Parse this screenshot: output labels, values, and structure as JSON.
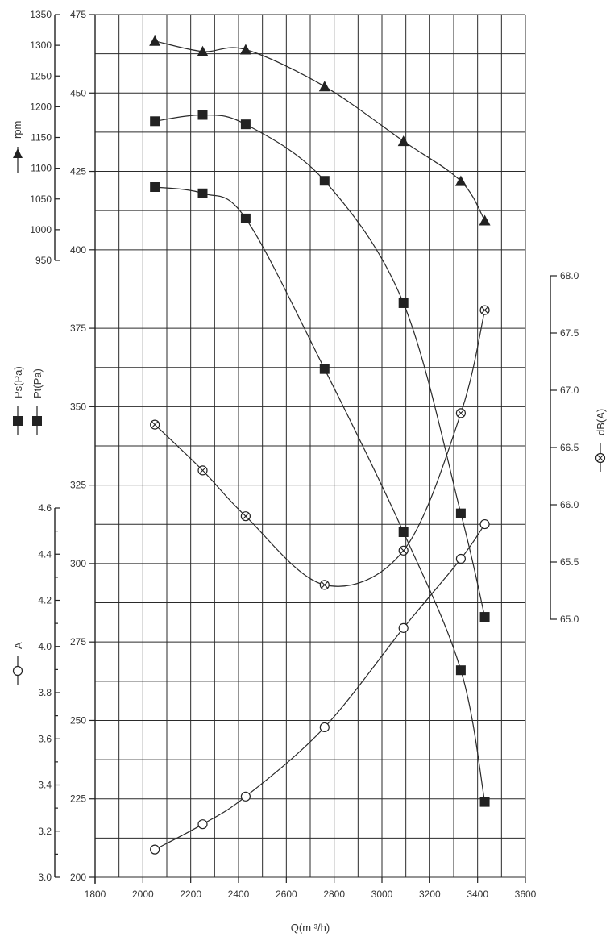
{
  "chart_data": {
    "type": "line",
    "x": [
      2050,
      2250,
      2430,
      2760,
      3090,
      3330,
      3430
    ],
    "xlabel": "Q(m ³/h)",
    "xlim": [
      1800,
      3600
    ],
    "xticks": [
      "1800",
      "2000",
      "2200",
      "2400",
      "2600",
      "2800",
      "3000",
      "3200",
      "3400",
      "3600"
    ],
    "grid": true,
    "axes": {
      "rpm": {
        "label": "rpm",
        "range": [
          950,
          1350
        ],
        "ticks": [
          "950",
          "1000",
          "1050",
          "1100",
          "1150",
          "1200",
          "1250",
          "1300",
          "1350"
        ]
      },
      "pressure": {
        "label_ps": "Ps(Pa)",
        "label_pt": "Pt(Pa)",
        "range": [
          200,
          475
        ],
        "ticks": [
          "200",
          "225",
          "250",
          "275",
          "300",
          "325",
          "350",
          "375",
          "400",
          "425",
          "450",
          "475"
        ]
      },
      "current": {
        "label": "A",
        "range": [
          3.0,
          4.6
        ],
        "ticks": [
          "3.0",
          "3.2",
          "3.4",
          "3.6",
          "3.8",
          "4.0",
          "4.2",
          "4.4",
          "4.6"
        ]
      },
      "noise": {
        "label": "dB(A)",
        "range": [
          65.0,
          68.0
        ],
        "ticks": [
          "65.0",
          "65.5",
          "66.0",
          "66.5",
          "67.0",
          "67.5",
          "68.0"
        ]
      }
    },
    "series": [
      {
        "name": "rpm",
        "axis": "rpm",
        "marker": "triangle",
        "values": [
          1307,
          1290,
          1293,
          1233,
          1144,
          1079,
          1015
        ]
      },
      {
        "name": "Pt(Pa)",
        "axis": "pressure",
        "marker": "square",
        "values": [
          441,
          443,
          440,
          422,
          383,
          316,
          283
        ]
      },
      {
        "name": "Ps(Pa)",
        "axis": "pressure",
        "marker": "square",
        "values": [
          420,
          418,
          410,
          362,
          310,
          266,
          224
        ]
      },
      {
        "name": "dB(A)",
        "axis": "noise",
        "marker": "crossed-circle",
        "values": [
          66.7,
          66.3,
          65.9,
          65.3,
          65.6,
          66.8,
          67.7
        ]
      },
      {
        "name": "A",
        "axis": "current",
        "marker": "circle",
        "values": [
          3.12,
          3.23,
          3.35,
          3.65,
          4.08,
          4.38,
          4.53
        ]
      }
    ]
  }
}
